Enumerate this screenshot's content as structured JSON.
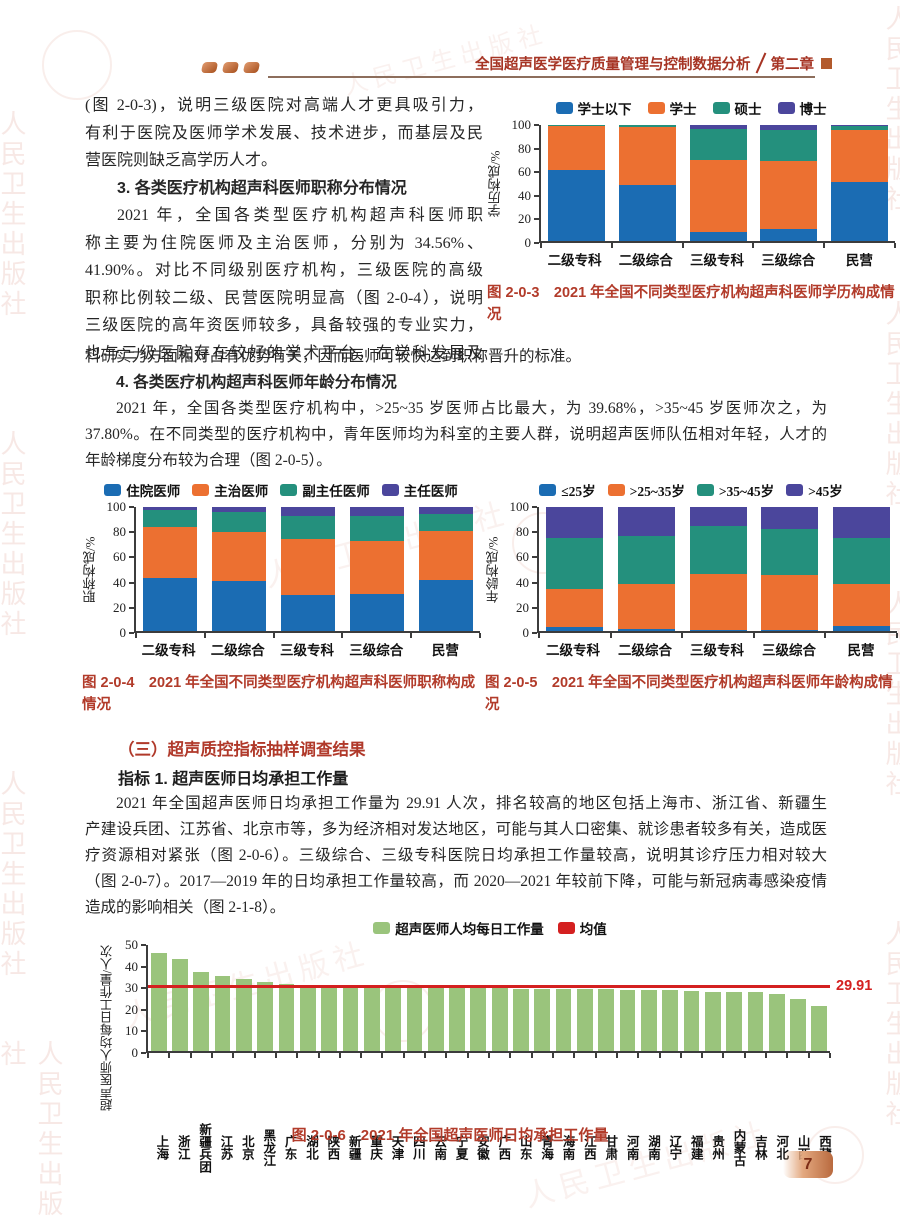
{
  "header": {
    "title": "全国超声医学医疗质量管理与控制数据分析",
    "chapter": "第二章"
  },
  "page": {
    "number": "7",
    "watermark": "人民卫生出版社"
  },
  "body": {
    "col_lines": [
      {
        "text": "(图 2-0-3)，说明三级医院对高端人才更具吸引力，"
      },
      {
        "text": "有利于医院及医师学术发展、技术进步，而基层及民"
      },
      {
        "text": "营医院则缺乏高学历人才。",
        "last": true
      },
      {
        "text": "3. 各类医疗机构超声科医师职称分布情况",
        "bold": true,
        "indent": true,
        "last": true
      },
      {
        "text": "2021 年，全国各类型医疗机构超声科医师职",
        "indent": true
      },
      {
        "text": "称主要为住院医师及主治医师，分别为 34.56%、"
      },
      {
        "text": "41.90%。对比不同级别医疗机构，三级医院的高级"
      },
      {
        "text": "职称比例较二级、民营医院明显高（图 2-0-4），说明"
      },
      {
        "text": "三级医院的高年资医师较多，具备较强的专业实力，"
      },
      {
        "text": "也与三级医院存在较好的学术平台，在学科发展及"
      }
    ],
    "full_lines": [
      {
        "text": "科研实力方面相对占有优势有关，因而医师可较快达到职称晋升的标准。",
        "last": true
      },
      {
        "text": "4. 各类医疗机构超声科医师年龄分布情况",
        "bold": true,
        "indent": true,
        "last": true
      },
      {
        "text": "2021 年，全国各类型医疗机构中，>25~35 岁医师占比最大，为 39.68%，>35~45 岁医师次之，为",
        "indent": true
      },
      {
        "text": "37.80%。在不同类型的医疗机构中，青年医师均为科室的主要人群，说明超声医师队伍相对年轻，人才的"
      },
      {
        "text": "年龄梯度分布较为合理（图 2-0-5）。",
        "last": true
      }
    ]
  },
  "section3": {
    "heading": "（三）超声质控指标抽样调查结果",
    "indicator": "指标 1. 超声医师日均承担工作量",
    "para_lines": [
      {
        "text": "2021 年全国超声医师日均承担工作量为 29.91 人次，排名较高的地区包括上海市、浙江省、新疆生",
        "indent": true
      },
      {
        "text": "产建设兵团、江苏省、北京市等，多为经济相对发达地区，可能与其人口密集、就诊患者较多有关，造成医"
      },
      {
        "text": "疗资源相对紧张（图 2-0-6）。三级综合、三级专科医院日均承担工作量较高，说明其诊疗压力相对较大"
      },
      {
        "text": "（图 2-0-7）。2017—2019 年的日均承担工作量较高，而 2020—2021 年较前下降，可能与新冠病毒感染疫情"
      },
      {
        "text": "造成的影响相关（图 2-1-8）。",
        "last": true
      }
    ]
  },
  "chart_data": [
    {
      "type": "stacked-bar",
      "caption": "图 2-0-3　2021 年全国不同类型医疗机构超声科医师学历构成情况",
      "ylabel": "学历构成/%",
      "ylim": [
        0,
        100
      ],
      "yticks": [
        0,
        20,
        40,
        60,
        80,
        100
      ],
      "categories": [
        "二级专科",
        "二级综合",
        "三级专科",
        "三级综合",
        "民营"
      ],
      "series": [
        {
          "name": "学士以下",
          "color": "#1b6cb3",
          "values": [
            61,
            48,
            8,
            10,
            51
          ]
        },
        {
          "name": "学士",
          "color": "#ec7031",
          "values": [
            38,
            50,
            62,
            59,
            45
          ]
        },
        {
          "name": "硕士",
          "color": "#24907d",
          "values": [
            1,
            2,
            27,
            27,
            3
          ]
        },
        {
          "name": "博士",
          "color": "#4b469c",
          "values": [
            0,
            0,
            3,
            4,
            1
          ]
        }
      ]
    },
    {
      "type": "stacked-bar",
      "caption": "图 2-0-4　2021 年全国不同类型医疗机构超声科医师职称构成情况",
      "ylabel": "职称构成/%",
      "ylim": [
        0,
        100
      ],
      "yticks": [
        0,
        20,
        40,
        60,
        80,
        100
      ],
      "categories": [
        "二级专科",
        "二级综合",
        "三级专科",
        "三级综合",
        "民营"
      ],
      "series": [
        {
          "name": "住院医师",
          "color": "#1b6cb3",
          "values": [
            43,
            40,
            29,
            30,
            41
          ]
        },
        {
          "name": "主治医师",
          "color": "#ec7031",
          "values": [
            41,
            40,
            45,
            43,
            40
          ]
        },
        {
          "name": "副主任医师",
          "color": "#24907d",
          "values": [
            14,
            16,
            19,
            20,
            13
          ]
        },
        {
          "name": "主任医师",
          "color": "#4b469c",
          "values": [
            2,
            4,
            7,
            7,
            6
          ]
        }
      ]
    },
    {
      "type": "stacked-bar",
      "caption": "图 2-0-5　2021 年全国不同类型医疗机构超声科医师年龄构成情况",
      "ylabel": "年龄构成/%",
      "ylim": [
        0,
        100
      ],
      "yticks": [
        0,
        20,
        40,
        60,
        80,
        100
      ],
      "categories": [
        "二级专科",
        "二级综合",
        "三级专科",
        "三级综合",
        "民营"
      ],
      "series": [
        {
          "name": "≤25岁",
          "color": "#1b6cb3",
          "values": [
            3,
            2,
            1,
            1,
            4
          ]
        },
        {
          "name": ">25~35岁",
          "color": "#ec7031",
          "values": [
            31,
            36,
            45,
            44,
            34
          ]
        },
        {
          "name": ">35~45岁",
          "color": "#24907d",
          "values": [
            41,
            39,
            39,
            37,
            37
          ]
        },
        {
          "name": ">45岁",
          "color": "#4b469c",
          "values": [
            25,
            23,
            15,
            18,
            25
          ]
        }
      ]
    },
    {
      "type": "bar",
      "caption": "图 2-0-6　2021 年全国超声医师日均承担工作量",
      "ylabel": "超声医师人均每日工作量/人次",
      "ylim": [
        0,
        50
      ],
      "yticks": [
        0,
        10,
        20,
        30,
        40,
        50
      ],
      "bar_color": "#9ac47c",
      "legend": [
        {
          "name": "超声医师人均每日工作量",
          "color": "#9ac47c"
        },
        {
          "name": "均值",
          "color": "#d42020"
        }
      ],
      "mean": {
        "value": 29.91,
        "label": "29.91",
        "color": "#d42020"
      },
      "categories": [
        "上海",
        "浙江",
        "新疆兵团",
        "江苏",
        "北京",
        "黑龙江",
        "广东",
        "湖北",
        "陕西",
        "新疆",
        "重庆",
        "天津",
        "四川",
        "云南",
        "宁夏",
        "安徽",
        "广西",
        "山东",
        "青海",
        "海南",
        "江西",
        "甘肃",
        "河南",
        "湖南",
        "辽宁",
        "福建",
        "贵州",
        "内蒙古",
        "吉林",
        "河北",
        "山西",
        "西藏"
      ],
      "values": [
        46.0,
        43.3,
        37.5,
        35.4,
        34.2,
        32.5,
        31.6,
        30.9,
        30.6,
        30.6,
        30.5,
        30.3,
        30.2,
        30.0,
        30.0,
        29.8,
        29.7,
        29.4,
        29.3,
        29.3,
        29.4,
        29.4,
        28.9,
        28.7,
        28.6,
        28.4,
        27.8,
        27.7,
        27.9,
        26.9,
        24.4,
        21.3
      ]
    }
  ]
}
